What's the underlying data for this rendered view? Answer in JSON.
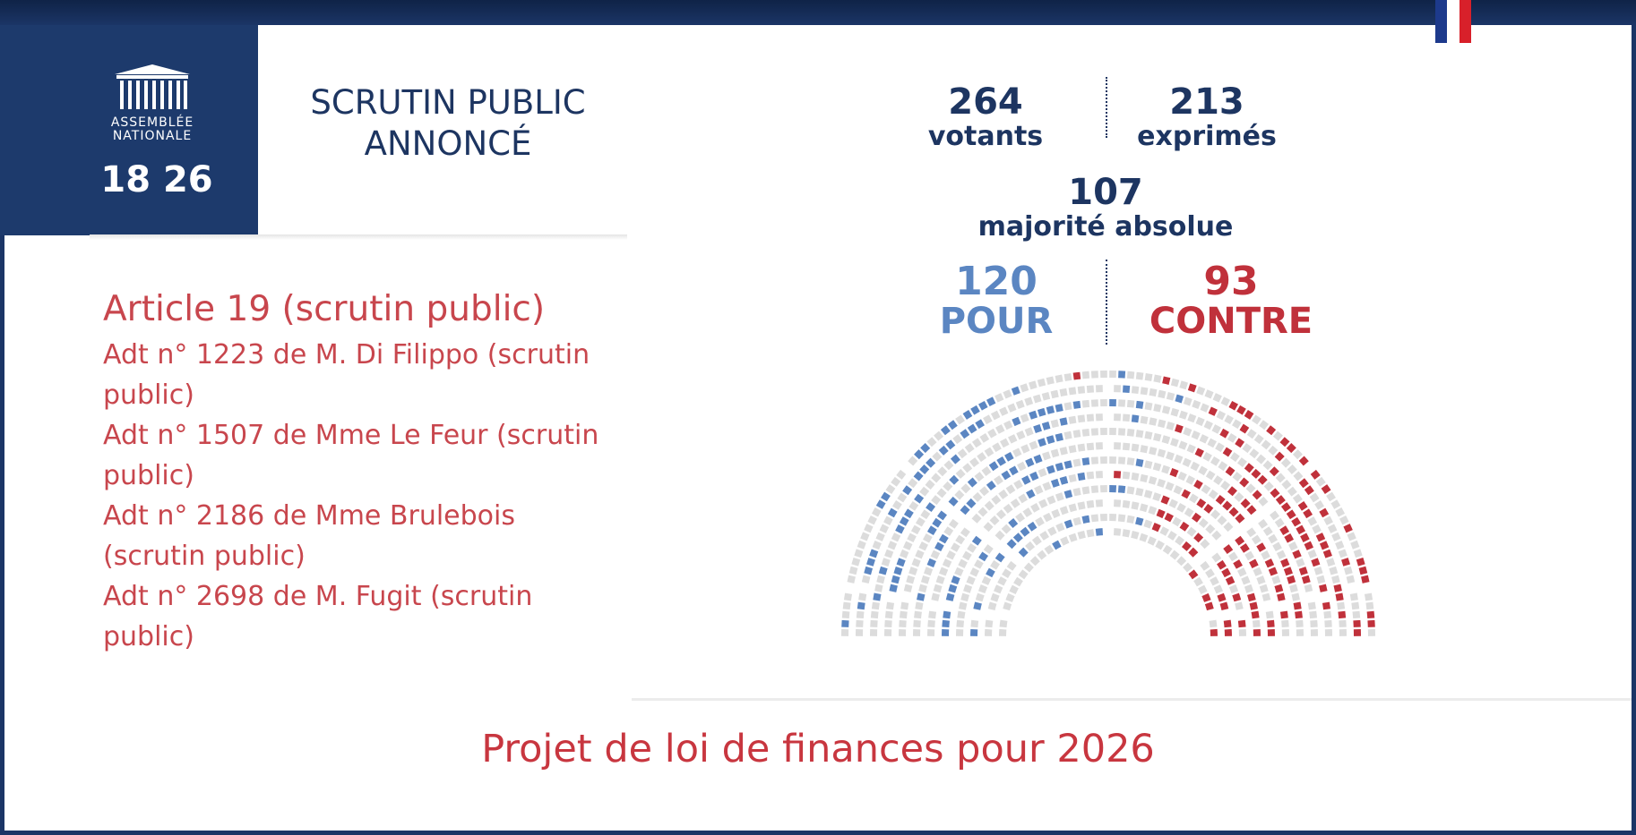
{
  "logo": {
    "line1": "ASSEMBLÉE",
    "line2": "NATIONALE",
    "numbers": "18 26"
  },
  "headline": {
    "line1": "SCRUTIN PUBLIC",
    "line2": "ANNONCÉ"
  },
  "agenda": {
    "article": "Article 19 (scrutin public)",
    "items": [
      "Adt n° 1223 de M. Di Filippo (scrutin public)",
      "Adt n° 1507 de Mme Le Feur (scrutin public)",
      "Adt n° 2186 de Mme Brulebois (scrutin public)",
      "Adt n° 2698 de M. Fugit (scrutin public)"
    ]
  },
  "results": {
    "votants": "264",
    "votants_label": "votants",
    "exprimes": "213",
    "exprimes_label": "exprimés",
    "majorite": "107",
    "majorite_label": "majorité absolue",
    "pour": "120",
    "pour_label": "POUR",
    "contre": "93",
    "contre_label": "CONTRE"
  },
  "chart_data": {
    "type": "hemicycle",
    "series": [
      {
        "name": "POUR",
        "value": 120
      },
      {
        "name": "CONTRE",
        "value": 93
      }
    ],
    "colors": {
      "pour": "#5b86c2",
      "contre": "#c0313b",
      "absent": "#dcdcdc"
    }
  },
  "footer": {
    "title": "Projet de loi de finances pour 2026"
  },
  "colors": {
    "navy": "#1d3561",
    "red": "#c8363f"
  }
}
